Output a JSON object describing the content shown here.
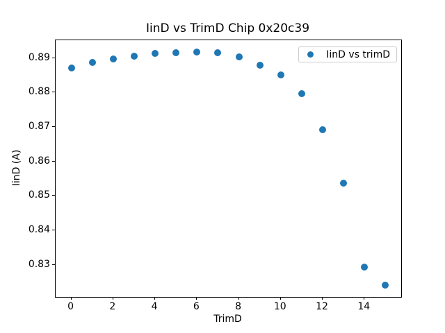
{
  "window": {
    "background_color": "#ffffff"
  },
  "chart_data": {
    "type": "scatter",
    "title": "IinD vs TrimD Chip 0x20c39",
    "xlabel": "TrimD",
    "ylabel": "IinD (A)",
    "legend": {
      "position": "upper right",
      "entries": [
        {
          "label": "IinD vs trimD",
          "marker": "circle",
          "color": "#1f77b4"
        }
      ]
    },
    "series": [
      {
        "name": "IinD vs trimD",
        "color": "#1f77b4",
        "x": [
          0,
          1,
          2,
          3,
          4,
          5,
          6,
          7,
          8,
          9,
          10,
          11,
          12,
          13,
          14,
          15
        ],
        "y": [
          0.8871,
          0.8888,
          0.8898,
          0.8906,
          0.8913,
          0.8915,
          0.8917,
          0.8915,
          0.8904,
          0.888,
          0.8851,
          0.8797,
          0.8693,
          0.8537,
          0.8294,
          0.8241
        ]
      }
    ],
    "xlim": [
      -0.75,
      15.75
    ],
    "ylim": [
      0.8207,
      0.8952
    ],
    "xticks": [
      0,
      2,
      4,
      6,
      8,
      10,
      12,
      14
    ],
    "yticks": [
      0.83,
      0.84,
      0.85,
      0.86,
      0.87,
      0.88,
      0.89
    ],
    "ytick_format_decimals": 2,
    "grid": false,
    "marker_color": "#1f77b4",
    "marker_diameter_px": 10
  }
}
